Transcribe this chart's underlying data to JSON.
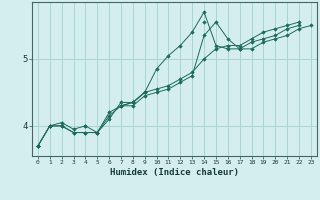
{
  "title": "",
  "xlabel": "Humidex (Indice chaleur)",
  "ylabel": "",
  "background_color": "#d4eeee",
  "grid_color": "#aad4d4",
  "line_color": "#1a6b5a",
  "marker_color": "#1a6b5a",
  "xlim": [
    -0.5,
    23.5
  ],
  "ylim": [
    3.55,
    5.85
  ],
  "xticks": [
    0,
    1,
    2,
    3,
    4,
    5,
    6,
    7,
    8,
    9,
    10,
    11,
    12,
    13,
    14,
    15,
    16,
    17,
    18,
    19,
    20,
    21,
    22,
    23
  ],
  "yticks": [
    4,
    5
  ],
  "series": [
    [
      3.7,
      4.0,
      4.0,
      3.9,
      3.9,
      3.9,
      4.2,
      4.3,
      4.3,
      4.45,
      4.5,
      4.55,
      4.65,
      4.75,
      5.35,
      5.55,
      5.3,
      5.15,
      5.15,
      5.25,
      5.3,
      5.35,
      5.45,
      5.5
    ],
    [
      3.7,
      4.0,
      4.0,
      3.9,
      3.9,
      3.9,
      4.15,
      4.3,
      4.35,
      4.5,
      4.85,
      5.05,
      5.2,
      5.4,
      5.7,
      5.2,
      5.15,
      5.15,
      5.25,
      5.3,
      5.35,
      5.45,
      5.5,
      null
    ],
    [
      3.7,
      null,
      null,
      null,
      4.0,
      null,
      null,
      4.3,
      4.35,
      4.5,
      null,
      null,
      null,
      null,
      5.55,
      null,
      null,
      null,
      null,
      null,
      null,
      null,
      null,
      null
    ],
    [
      3.7,
      4.0,
      4.05,
      3.95,
      4.0,
      3.9,
      4.1,
      4.35,
      4.35,
      4.5,
      4.55,
      4.6,
      4.7,
      4.8,
      5.0,
      5.15,
      5.2,
      5.2,
      5.3,
      5.4,
      5.45,
      5.5,
      5.55,
      null
    ]
  ]
}
